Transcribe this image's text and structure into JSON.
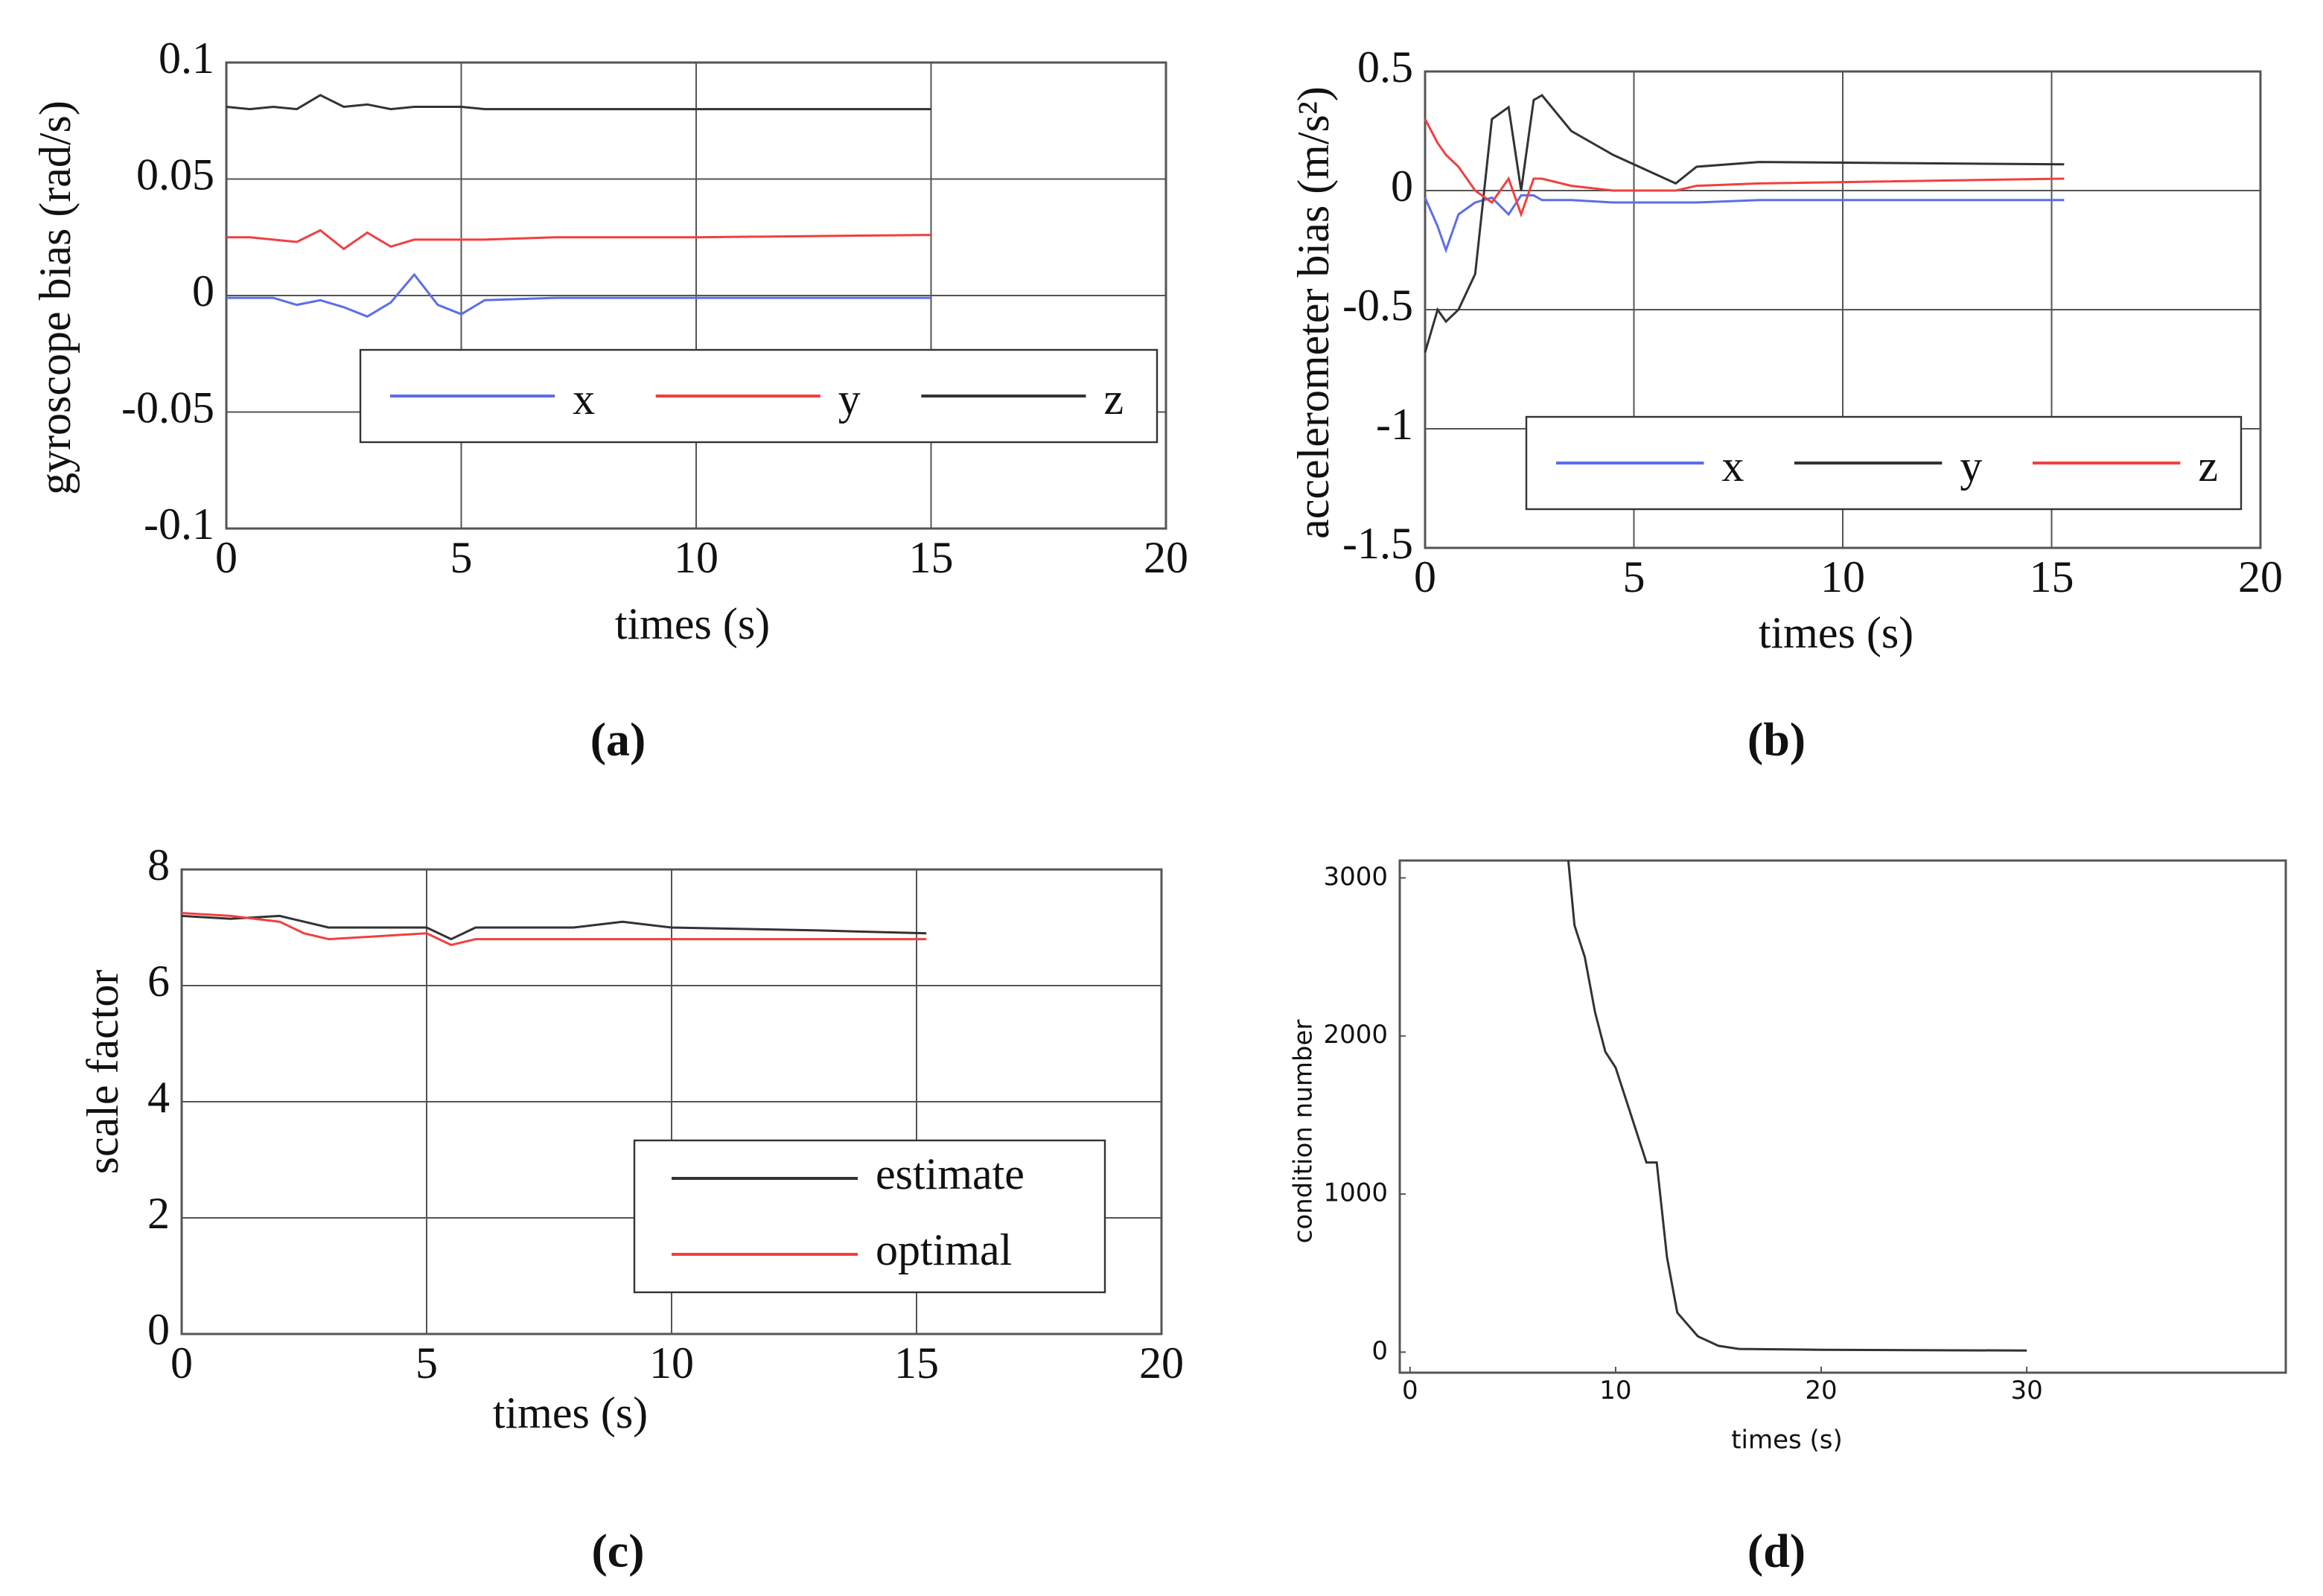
{
  "chart_data": [
    {
      "type": "line",
      "caption": "(a)",
      "x_label": "times (s)",
      "y_label": "gyroscope bias (rad/s)",
      "x": [
        0,
        0.5,
        1,
        1.5,
        2,
        2.5,
        3,
        3.5,
        4,
        4.5,
        5,
        5.5,
        7,
        10,
        15
      ],
      "series": [
        {
          "name": "x",
          "color": "#5b6ee8",
          "values": [
            -0.001,
            -0.001,
            -0.001,
            -0.004,
            -0.002,
            -0.005,
            -0.009,
            -0.003,
            0.009,
            -0.004,
            -0.008,
            -0.002,
            -0.001,
            -0.001,
            -0.001
          ]
        },
        {
          "name": "y",
          "color": "#f04040",
          "values": [
            0.025,
            0.025,
            0.024,
            0.023,
            0.028,
            0.02,
            0.027,
            0.021,
            0.024,
            0.024,
            0.024,
            0.024,
            0.025,
            0.025,
            0.026
          ]
        },
        {
          "name": "z",
          "color": "#333333",
          "values": [
            0.081,
            0.08,
            0.081,
            0.08,
            0.086,
            0.081,
            0.082,
            0.08,
            0.081,
            0.081,
            0.081,
            0.08,
            0.08,
            0.08,
            0.08
          ]
        }
      ],
      "xlim": [
        0,
        20
      ],
      "xticks": [
        0,
        5,
        10,
        15,
        20
      ],
      "ylim": [
        -0.1,
        0.1
      ],
      "yticks": [
        -0.1,
        -0.05,
        0,
        0.05,
        0.1
      ],
      "grid": true,
      "legend": "lower right"
    },
    {
      "type": "line",
      "caption": "(b)",
      "x_label": "times (s)",
      "y_label": "accelerometer bias (m/s²)",
      "x": [
        0,
        0.3,
        0.5,
        0.8,
        1.2,
        1.6,
        2,
        2.3,
        2.6,
        2.8,
        3.5,
        4.5,
        6,
        6.5,
        8,
        15.3
      ],
      "series": [
        {
          "name": "x",
          "color": "#5b6ee8",
          "values": [
            -0.03,
            -0.15,
            -0.25,
            -0.1,
            -0.05,
            -0.03,
            -0.1,
            -0.02,
            -0.02,
            -0.04,
            -0.04,
            -0.05,
            -0.05,
            -0.05,
            -0.04,
            -0.04
          ]
        },
        {
          "name": "y",
          "color": "#333333",
          "values": [
            -0.68,
            -0.5,
            -0.55,
            -0.5,
            -0.35,
            0.3,
            0.35,
            0,
            0.38,
            0.4,
            0.25,
            0.15,
            0.03,
            0.1,
            0.12,
            0.11
          ]
        },
        {
          "name": "z",
          "color": "#f04040",
          "values": [
            0.3,
            0.2,
            0.15,
            0.1,
            0,
            -0.05,
            0.05,
            -0.1,
            0.05,
            0.05,
            0.02,
            0,
            0,
            0.02,
            0.03,
            0.05
          ]
        }
      ],
      "xlim": [
        0,
        20
      ],
      "xticks": [
        0,
        5,
        10,
        15,
        20
      ],
      "ylim": [
        -1.5,
        0.5
      ],
      "yticks": [
        -1.5,
        -1,
        -0.5,
        0,
        0.5
      ],
      "grid": true,
      "legend": "lower right"
    },
    {
      "type": "line",
      "caption": "(c)",
      "x_label": "times (s)",
      "y_label": "scale factor",
      "x": [
        0,
        1,
        2,
        2.5,
        3,
        4,
        5,
        5.5,
        6,
        7,
        8,
        9,
        10,
        13,
        15.2
      ],
      "series": [
        {
          "name": "estimate",
          "color": "#333333",
          "values": [
            7.2,
            7.15,
            7.2,
            7.1,
            7.0,
            7.0,
            7.0,
            6.8,
            7.0,
            7.0,
            7.0,
            7.1,
            7.0,
            6.95,
            6.9
          ]
        },
        {
          "name": "optimal",
          "color": "#f04040",
          "values": [
            7.25,
            7.2,
            7.1,
            6.9,
            6.8,
            6.85,
            6.9,
            6.7,
            6.8,
            6.8,
            6.8,
            6.8,
            6.8,
            6.8,
            6.8
          ]
        }
      ],
      "xlim": [
        0,
        20
      ],
      "xticks": [
        0,
        5,
        10,
        15,
        20
      ],
      "ylim": [
        0,
        8
      ],
      "yticks": [
        0,
        2,
        4,
        6,
        8
      ],
      "grid": true,
      "legend": "lower right"
    },
    {
      "type": "line",
      "caption": "(d)",
      "x_label": "times (s)",
      "y_label": "condition number",
      "x": [
        7.7,
        8,
        8.5,
        9,
        9.5,
        10,
        10.5,
        11,
        11.5,
        12,
        12.5,
        13,
        14,
        15,
        16,
        20,
        30
      ],
      "series": [
        {
          "color": "#333333",
          "values": [
            3110,
            2700,
            2500,
            2150,
            1900,
            1800,
            1600,
            1400,
            1200,
            1200,
            600,
            250,
            100,
            40,
            20,
            15,
            10
          ]
        }
      ],
      "xlim": [
        -0.5,
        42.6
      ],
      "xticks": [
        0,
        10,
        20,
        30
      ],
      "ylim": [
        -130,
        3110
      ],
      "yticks": [
        0,
        1000,
        2000,
        3000
      ],
      "grid": false
    }
  ]
}
